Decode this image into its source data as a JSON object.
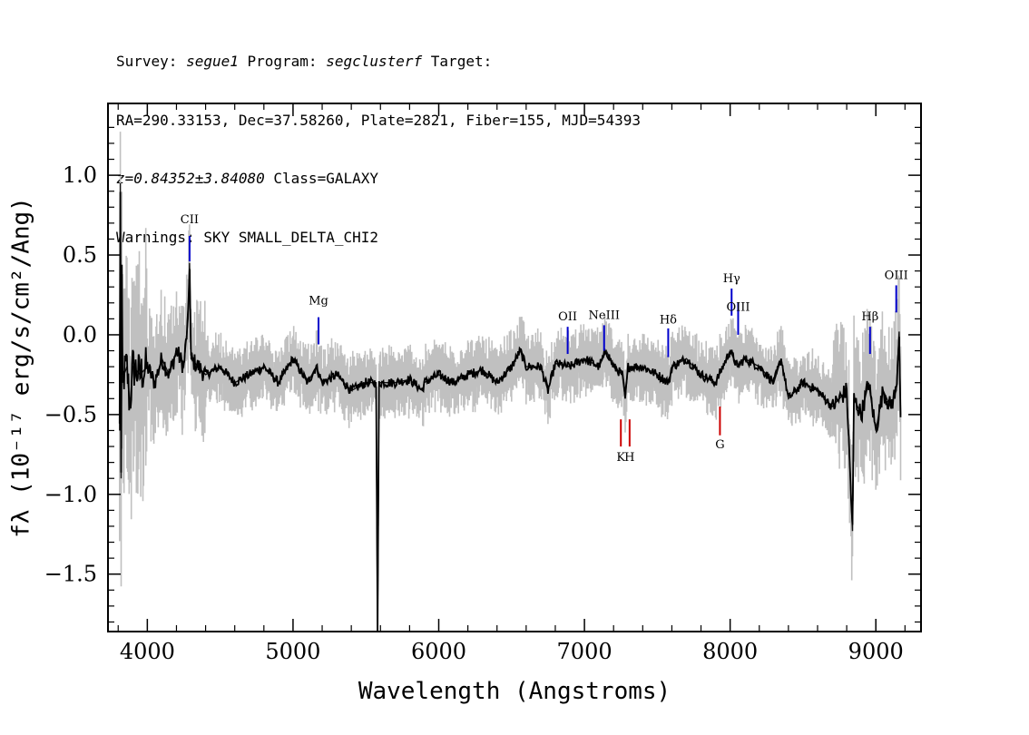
{
  "header": {
    "line1": {
      "survey_label": "Survey: ",
      "survey": "segue1",
      "program_label": " Program: ",
      "program": "segclusterf",
      "target_label": " Target:"
    },
    "line2": "RA=290.33153, Dec=37.58260, Plate=2821, Fiber=155, MJD=54393",
    "line3": {
      "redshift": "z=0.84352±3.84080",
      "class": " Class=GALAXY"
    },
    "line4": "Warnings: SKY SMALL_DELTA_CHI2"
  },
  "colors": {
    "flux": "#000000",
    "error": "#c0c0c0",
    "emission": "#0000cc",
    "absorption": "#cc0000"
  },
  "chart_data": {
    "type": "line",
    "xlabel": "Wavelength (Angstroms)",
    "ylabel": "fλ (10⁻¹⁷ erg/s/cm²/Ang)",
    "xlim": [
      3730,
      9310
    ],
    "ylim": [
      -1.86,
      1.45
    ],
    "xticks": [
      4000,
      5000,
      6000,
      7000,
      8000,
      9000
    ],
    "yticks": [
      1.0,
      0.5,
      0.0,
      -0.5,
      -1.0,
      -1.5
    ],
    "ytick_labels": [
      "1.0",
      "0.5",
      "0.0",
      "−0.5",
      "−1.0",
      "−1.5"
    ],
    "series": [
      {
        "x": [
          3810,
          3815,
          3820,
          3825,
          3830,
          3840,
          3860,
          3880,
          3900,
          3950,
          4000,
          4050,
          4100,
          4150,
          4200,
          4250,
          4280,
          4290,
          4300,
          4350,
          4400,
          4500,
          4600,
          4700,
          4800,
          4900,
          5000,
          5100,
          5160,
          5200,
          5300,
          5400,
          5500,
          5570,
          5580,
          5590,
          5600,
          5700,
          5800,
          5890,
          5900,
          6000,
          6100,
          6200,
          6300,
          6400,
          6500,
          6560,
          6600,
          6700,
          6750,
          6800,
          6900,
          7000,
          7100,
          7150,
          7200,
          7260,
          7280,
          7300,
          7400,
          7500,
          7580,
          7600,
          7700,
          7800,
          7900,
          8000,
          8050,
          8100,
          8200,
          8300,
          8350,
          8400,
          8500,
          8600,
          8700,
          8800,
          8840,
          8850,
          8900,
          8950,
          9000,
          9050,
          9100,
          9140,
          9160,
          9170
        ],
        "values": [
          -0.6,
          0.95,
          -0.9,
          0.3,
          -0.3,
          -0.25,
          -0.2,
          -0.45,
          -0.2,
          -0.25,
          -0.2,
          -0.3,
          -0.15,
          -0.25,
          -0.1,
          -0.2,
          0.1,
          0.45,
          -0.15,
          -0.2,
          -0.25,
          -0.2,
          -0.3,
          -0.25,
          -0.2,
          -0.3,
          -0.15,
          -0.3,
          -0.2,
          -0.3,
          -0.25,
          -0.35,
          -0.3,
          -0.3,
          -1.86,
          -0.3,
          -0.3,
          -0.3,
          -0.28,
          -0.35,
          -0.3,
          -0.25,
          -0.3,
          -0.25,
          -0.22,
          -0.3,
          -0.2,
          -0.1,
          -0.2,
          -0.2,
          -0.35,
          -0.18,
          -0.2,
          -0.15,
          -0.2,
          -0.1,
          -0.2,
          -0.25,
          -0.4,
          -0.2,
          -0.2,
          -0.25,
          -0.3,
          -0.2,
          -0.15,
          -0.25,
          -0.3,
          -0.1,
          -0.2,
          -0.15,
          -0.2,
          -0.3,
          -0.15,
          -0.4,
          -0.3,
          -0.35,
          -0.45,
          -0.35,
          -1.23,
          -0.4,
          -0.5,
          -0.3,
          -0.6,
          -0.35,
          -0.45,
          -0.35,
          0.02,
          -0.5
        ]
      }
    ],
    "line_labels": [
      {
        "label": "CII",
        "x": 4290,
        "kind": "emission",
        "top": 0.62,
        "bottom": 0.46,
        "label_y": 0.7
      },
      {
        "label": "Mg",
        "x": 5175,
        "kind": "emission",
        "top": 0.11,
        "bottom": -0.06,
        "label_y": 0.19
      },
      {
        "label": "OII",
        "x": 6885,
        "kind": "emission",
        "top": 0.05,
        "bottom": -0.12,
        "label_y": 0.09
      },
      {
        "label": "NeIII",
        "x": 7135,
        "kind": "emission",
        "top": 0.06,
        "bottom": -0.1,
        "label_y": 0.1
      },
      {
        "label": "Hδ",
        "x": 7575,
        "kind": "emission",
        "top": 0.04,
        "bottom": -0.14,
        "label_y": 0.07
      },
      {
        "label": "Hγ",
        "x": 8010,
        "kind": "emission",
        "top": 0.29,
        "bottom": 0.12,
        "label_y": 0.33
      },
      {
        "label": "OIII",
        "x": 8055,
        "kind": "emission",
        "top": 0.2,
        "bottom": 0.0,
        "label_y": 0.15
      },
      {
        "label": "Hβ",
        "x": 8960,
        "kind": "emission",
        "top": 0.05,
        "bottom": -0.12,
        "label_y": 0.09
      },
      {
        "label": "OIII",
        "x": 9140,
        "kind": "emission",
        "top": 0.31,
        "bottom": 0.14,
        "label_y": 0.35
      },
      {
        "label": "K",
        "x": 7250,
        "kind": "absorption",
        "top": -0.53,
        "bottom": -0.7,
        "label_y": -0.79
      },
      {
        "label": "H",
        "x": 7310,
        "kind": "absorption",
        "top": -0.53,
        "bottom": -0.7,
        "label_y": -0.79
      },
      {
        "label": "G",
        "x": 7930,
        "kind": "absorption",
        "top": -0.45,
        "bottom": -0.63,
        "label_y": -0.71
      }
    ]
  }
}
